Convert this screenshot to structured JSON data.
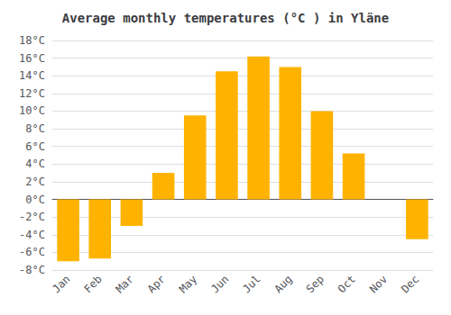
{
  "chart_data": {
    "type": "bar",
    "title": "Average monthly temperatures (°C ) in Yläne",
    "categories": [
      "Jan",
      "Feb",
      "Mar",
      "Apr",
      "May",
      "Jun",
      "Jul",
      "Aug",
      "Sep",
      "Oct",
      "Nov",
      "Dec"
    ],
    "values": [
      -7.0,
      -6.7,
      -3.0,
      3.0,
      9.5,
      14.5,
      16.2,
      15.0,
      10.0,
      5.2,
      0.0,
      -4.5
    ],
    "color": "#FFB300",
    "ylim": [
      -8,
      18
    ],
    "yticks": [
      {
        "value": -8,
        "label": "-8°C"
      },
      {
        "value": -6,
        "label": "-6°C"
      },
      {
        "value": -4,
        "label": "-4°C"
      },
      {
        "value": -2,
        "label": "-2°C"
      },
      {
        "value": 0,
        "label": "0°C"
      },
      {
        "value": 2,
        "label": "2°C"
      },
      {
        "value": 4,
        "label": "4°C"
      },
      {
        "value": 6,
        "label": "6°C"
      },
      {
        "value": 8,
        "label": "8°C"
      },
      {
        "value": 10,
        "label": "10°C"
      },
      {
        "value": 12,
        "label": "12°C"
      },
      {
        "value": 14,
        "label": "14°C"
      },
      {
        "value": 16,
        "label": "16°C"
      },
      {
        "value": 18,
        "label": "18°C"
      }
    ],
    "grid": true
  }
}
